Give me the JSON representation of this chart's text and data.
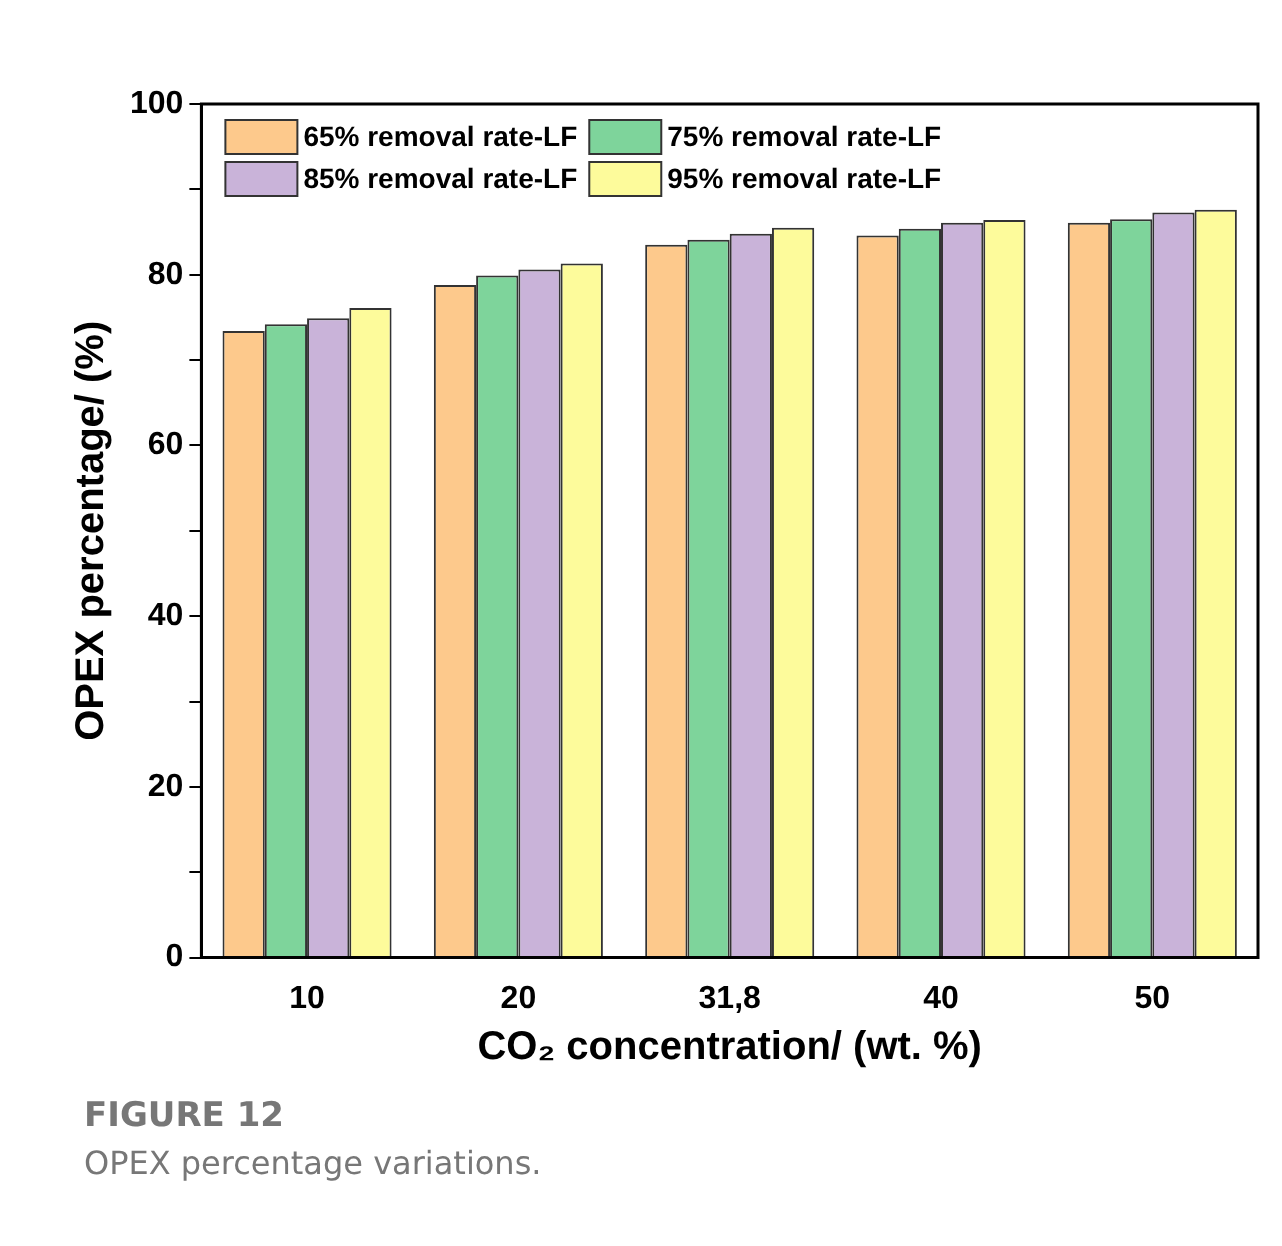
{
  "chart_data": {
    "type": "bar",
    "xlabel": "CO₂ concentration/ (wt. %)",
    "ylabel": "OPEX percentage/ (%)",
    "categories": [
      "10",
      "20",
      "31,8",
      "40",
      "50"
    ],
    "series": [
      {
        "name": "65% removal rate-LF",
        "color": "#fdc98c",
        "values": [
          73.4,
          78.8,
          83.5,
          84.6,
          86.1
        ]
      },
      {
        "name": "75% removal rate-LF",
        "color": "#7ed49b",
        "values": [
          74.2,
          79.9,
          84.1,
          85.4,
          86.5
        ]
      },
      {
        "name": "85% removal rate-LF",
        "color": "#c9b3d9",
        "values": [
          74.9,
          80.6,
          84.8,
          86.1,
          87.3
        ]
      },
      {
        "name": "95% removal rate-LF",
        "color": "#fdfb9b",
        "values": [
          76.1,
          81.3,
          85.5,
          86.4,
          87.6
        ]
      }
    ],
    "ylim": [
      0,
      100
    ],
    "yticks": [
      0,
      {
        "value": 10,
        "label": null
      },
      20,
      {
        "value": 30,
        "label": null
      },
      40,
      {
        "value": 50,
        "label": null
      },
      60,
      {
        "value": 70,
        "label": null
      },
      80,
      {
        "value": 90,
        "label": null
      },
      100
    ],
    "grid": false,
    "legend": "top left",
    "annotations": [
      "FIGURE 12",
      "OPEX percentage variations."
    ]
  }
}
